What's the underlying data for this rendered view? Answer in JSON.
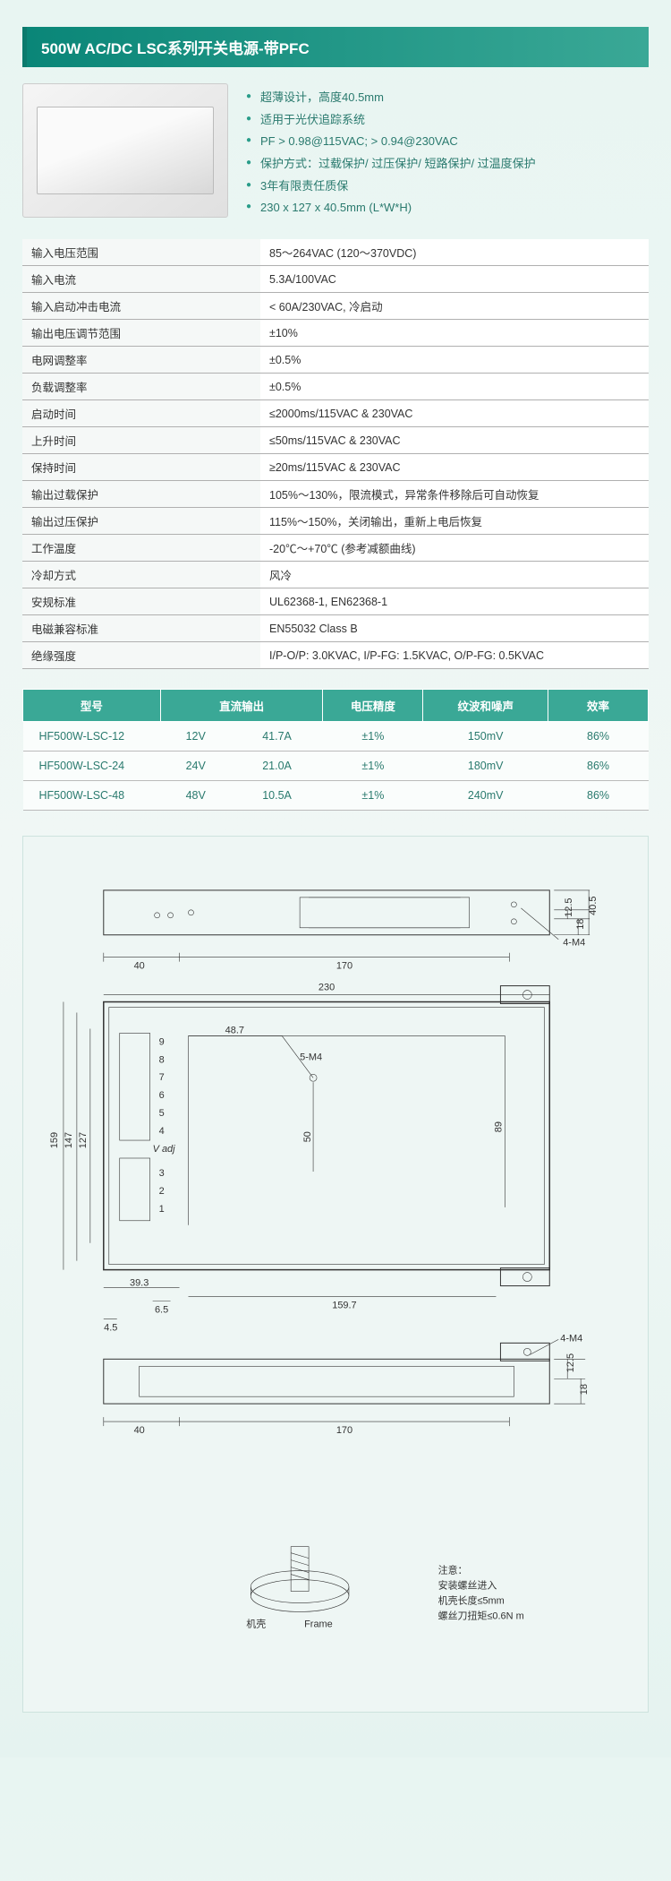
{
  "title": "500W AC/DC LSC系列开关电源-带PFC",
  "features": [
    "超薄设计，高度40.5mm",
    "适用于光伏追踪系统",
    "PF > 0.98@115VAC;  > 0.94@230VAC",
    "保护方式：过载保护/ 过压保护/ 短路保护/ 过温度保护",
    "3年有限责任质保",
    "230 x 127 x 40.5mm (L*W*H)"
  ],
  "specs": [
    [
      "输入电压范围",
      "85～264VAC (120～370VDC)"
    ],
    [
      "输入电流",
      "5.3A/100VAC"
    ],
    [
      "输入启动冲击电流",
      "< 60A/230VAC, 冷启动"
    ],
    [
      "输出电压调节范围",
      "±10%"
    ],
    [
      "电网调整率",
      "±0.5%"
    ],
    [
      "负载调整率",
      "±0.5%"
    ],
    [
      "启动时间",
      "≤2000ms/115VAC & 230VAC"
    ],
    [
      "上升时间",
      "≤50ms/115VAC & 230VAC"
    ],
    [
      "保持时间",
      "≥20ms/115VAC & 230VAC"
    ],
    [
      "输出过载保护",
      "105%～130%，限流模式，异常条件移除后可自动恢复"
    ],
    [
      "输出过压保护",
      "115%～150%，关闭输出，重新上电后恢复"
    ],
    [
      "工作温度",
      "-20℃～+70℃ (参考减额曲线)"
    ],
    [
      "冷却方式",
      "风冷"
    ],
    [
      "安规标准",
      "UL62368-1, EN62368-1"
    ],
    [
      "电磁兼容标准",
      "EN55032 Class B"
    ],
    [
      "绝缘强度",
      "I/P-O/P: 3.0KVAC, I/P-FG: 1.5KVAC, O/P-FG: 0.5KVAC"
    ]
  ],
  "model_headers": [
    "型号",
    "直流输出",
    "",
    "电压精度",
    "纹波和噪声",
    "效率"
  ],
  "models": [
    [
      "HF500W-LSC-12",
      "12V",
      "41.7A",
      "±1%",
      "150mV",
      "86%"
    ],
    [
      "HF500W-LSC-24",
      "24V",
      "21.0A",
      "±1%",
      "180mV",
      "86%"
    ],
    [
      "HF500W-LSC-48",
      "48V",
      "10.5A",
      "±1%",
      "240mV",
      "86%"
    ]
  ],
  "drawing": {
    "top_dims": {
      "d40": "40",
      "d170": "170",
      "d4m4": "4-M4",
      "d12_5": "12.5",
      "d18": "18",
      "d40_5": "40.5"
    },
    "main_dims": {
      "d230": "230",
      "d159": "159",
      "d147": "147",
      "d127": "127",
      "d48_7": "48.7",
      "d5m4": "5-M4",
      "d50": "50",
      "d89": "89",
      "d39_3": "39.3",
      "d6_5": "6.5",
      "d4_5": "4.5",
      "d159_7": "159.7"
    },
    "terminals": [
      "9",
      "8",
      "7",
      "6",
      "5",
      "4"
    ],
    "terminals2": [
      "3",
      "2",
      "1"
    ],
    "vadj": "V adj",
    "bottom_dims": {
      "d40": "40",
      "d170": "170",
      "d4m4": "4-M4",
      "d12_5": "12.5",
      "d18": "18"
    },
    "note_title": "注意：",
    "note_lines": [
      "安装螺丝进入",
      "机壳长度≤5mm",
      "螺丝刀扭矩≤0.6N m"
    ],
    "case_label": "机壳",
    "frame_label": "Frame"
  }
}
